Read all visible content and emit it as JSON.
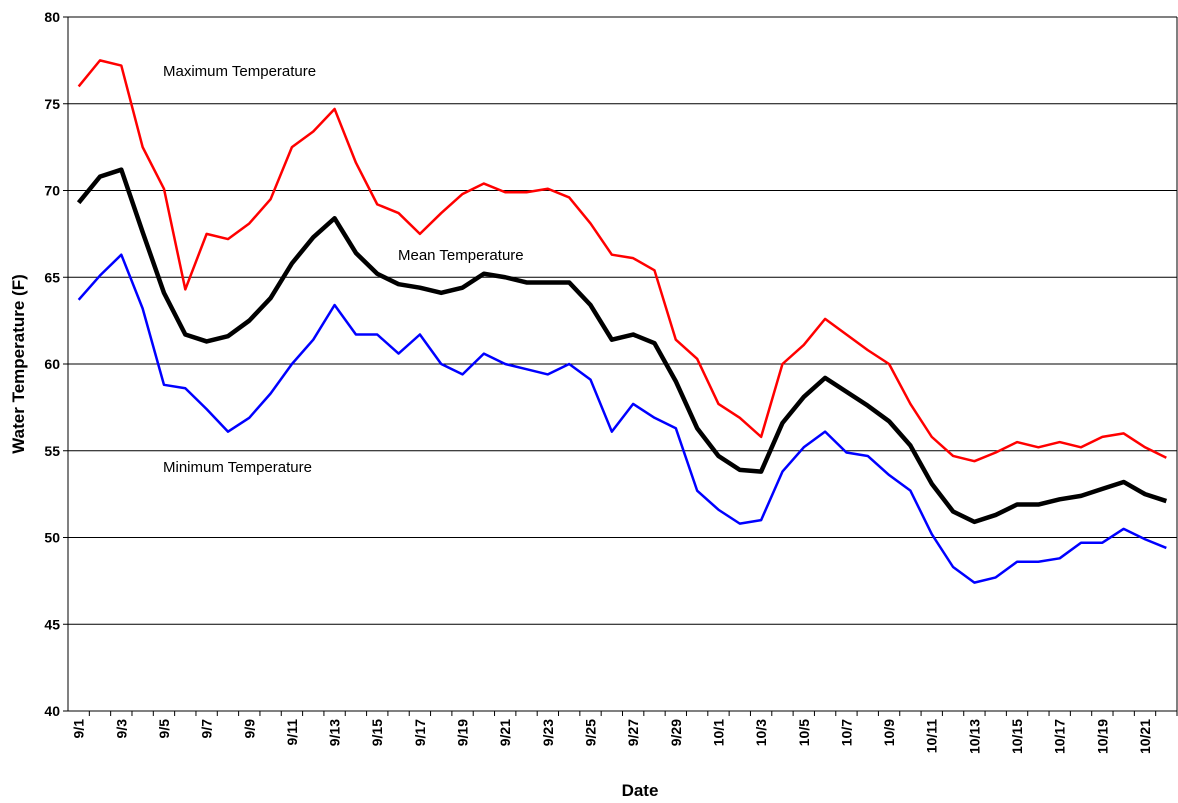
{
  "chart_data": {
    "type": "line",
    "x_label": "Date",
    "y_label": "Water Temperature (F)",
    "annotations": [
      "Maximum Temperature",
      "Mean Temperature",
      "Minimum Temperature"
    ],
    "categories": [
      "9/1",
      null,
      "9/3",
      null,
      "9/5",
      null,
      "9/7",
      null,
      "9/9",
      null,
      "9/11",
      null,
      "9/13",
      null,
      "9/15",
      null,
      "9/17",
      null,
      "9/19",
      null,
      "9/21",
      null,
      "9/23",
      null,
      "9/25",
      null,
      "9/27",
      null,
      "9/29",
      null,
      "10/1",
      null,
      "10/3",
      null,
      "10/5",
      null,
      "10/7",
      null,
      "10/9",
      null,
      "10/11",
      null,
      "10/13",
      null,
      "10/15",
      null,
      "10/17",
      null,
      "10/19",
      null,
      "10/21",
      null
    ],
    "series": [
      {
        "name": "Maximum Temperature",
        "color": "#ff0000",
        "width": 2.5,
        "values": [
          76.0,
          77.5,
          77.2,
          72.5,
          70.1,
          64.3,
          67.5,
          67.2,
          68.1,
          69.5,
          72.5,
          73.4,
          74.7,
          71.6,
          69.2,
          68.7,
          67.5,
          68.7,
          69.8,
          70.4,
          69.9,
          69.9,
          70.1,
          69.6,
          68.1,
          66.3,
          66.1,
          65.4,
          61.4,
          60.3,
          57.7,
          56.9,
          55.8,
          60.0,
          61.1,
          62.6,
          61.7,
          60.8,
          60.0,
          57.7,
          55.8,
          54.7,
          54.4,
          54.9,
          55.5,
          55.2,
          55.5,
          55.2,
          55.8,
          56.0,
          55.2,
          54.6
        ]
      },
      {
        "name": "Mean Temperature",
        "color": "#000000",
        "width": 4.5,
        "values": [
          69.3,
          70.8,
          71.2,
          67.6,
          64.1,
          61.7,
          61.3,
          61.6,
          62.5,
          63.8,
          65.8,
          67.3,
          68.4,
          66.4,
          65.2,
          64.6,
          64.4,
          64.1,
          64.4,
          65.2,
          65.0,
          64.7,
          64.7,
          64.7,
          63.4,
          61.4,
          61.7,
          61.2,
          59.0,
          56.3,
          54.7,
          53.9,
          53.8,
          56.6,
          58.1,
          59.2,
          58.4,
          57.6,
          56.7,
          55.3,
          53.1,
          51.5,
          50.9,
          51.3,
          51.9,
          51.9,
          52.2,
          52.4,
          52.8,
          53.2,
          52.5,
          52.1
        ]
      },
      {
        "name": "Minimum Temperature",
        "color": "#0000ff",
        "width": 2.5,
        "values": [
          63.7,
          65.1,
          66.3,
          63.2,
          58.8,
          58.6,
          57.4,
          56.1,
          56.9,
          58.3,
          60.0,
          61.4,
          63.4,
          61.7,
          61.7,
          60.6,
          61.7,
          60.0,
          59.4,
          60.6,
          60.0,
          59.7,
          59.4,
          60.0,
          59.1,
          56.1,
          57.7,
          56.9,
          56.3,
          52.7,
          51.6,
          50.8,
          51.0,
          53.8,
          55.2,
          56.1,
          54.9,
          54.7,
          53.6,
          52.7,
          50.2,
          48.3,
          47.4,
          47.7,
          48.6,
          48.6,
          48.8,
          49.7,
          49.7,
          50.5,
          49.9,
          49.4
        ]
      }
    ],
    "ylim": [
      40,
      80
    ],
    "yticks": [
      40,
      45,
      50,
      55,
      60,
      65,
      70,
      75,
      80
    ],
    "grid": true
  }
}
